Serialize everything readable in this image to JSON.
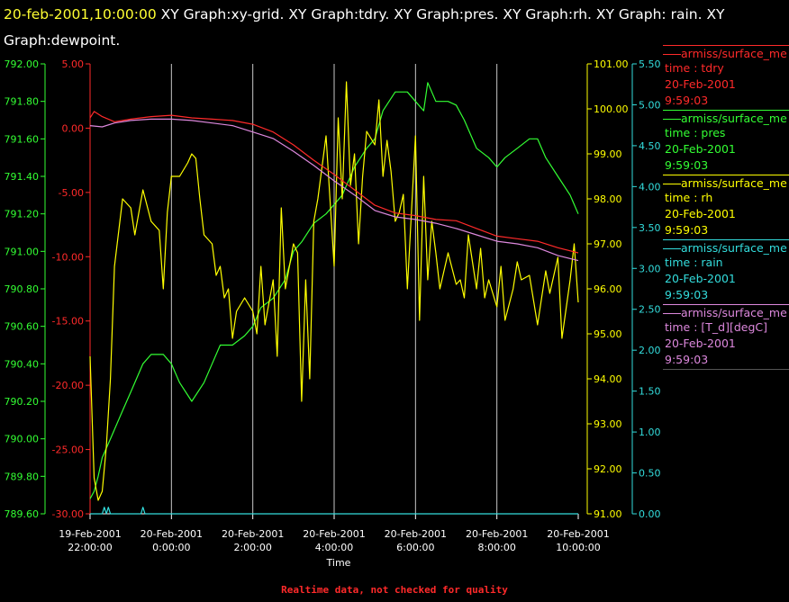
{
  "header": {
    "timestamp": "20-feb-2001,10:00:00",
    "text": " XY Graph:xy-grid.  XY Graph:tdry.  XY Graph:pres.  XY Graph:rh.  XY Graph: rain.  XY Graph:dewpoint."
  },
  "footer": {
    "note": "Realtime data, not checked for quality"
  },
  "colors": {
    "tdry": "#ff2a2a",
    "pres": "#33ff33",
    "rh": "#ffff00",
    "rain": "#33dddd",
    "dewpoint": "#dd88dd",
    "grid": "#c8c8c8"
  },
  "legend": [
    {
      "source": "armiss/surface_me",
      "label": "time : tdry",
      "date": "20-Feb-2001",
      "time": "9:59:03"
    },
    {
      "source": "armiss/surface_me",
      "label": "time : pres",
      "date": "20-Feb-2001",
      "time": "9:59:03"
    },
    {
      "source": "armiss/surface_me",
      "label": "time : rh",
      "date": "20-Feb-2001",
      "time": "9:59:03"
    },
    {
      "source": "armiss/surface_me",
      "label": "time : rain",
      "date": "20-Feb-2001",
      "time": "9:59:03"
    },
    {
      "source": "armiss/surface_me",
      "label": "time : [T_d][degC]",
      "date": "20-Feb-2001",
      "time": "9:59:03"
    }
  ],
  "chart_data": {
    "type": "line",
    "xlabel": "Time",
    "x_ticks": [
      {
        "line1": "19-Feb-2001",
        "line2": "22:00:00",
        "hours": 0
      },
      {
        "line1": "20-Feb-2001",
        "line2": "0:00:00",
        "hours": 2
      },
      {
        "line1": "20-Feb-2001",
        "line2": "2:00:00",
        "hours": 4
      },
      {
        "line1": "20-Feb-2001",
        "line2": "4:00:00",
        "hours": 6
      },
      {
        "line1": "20-Feb-2001",
        "line2": "6:00:00",
        "hours": 8
      },
      {
        "line1": "20-Feb-2001",
        "line2": "8:00:00",
        "hours": 10
      },
      {
        "line1": "20-Feb-2001",
        "line2": "10:00:00",
        "hours": 12
      }
    ],
    "x_hour_range": [
      0,
      12
    ],
    "grid": true,
    "axes": {
      "pres": {
        "range": [
          789.6,
          792.0
        ],
        "ticks": [
          "789.60",
          "789.80",
          "790.00",
          "790.20",
          "790.40",
          "790.60",
          "790.80",
          "791.00",
          "791.20",
          "791.40",
          "791.60",
          "791.80",
          "792.00"
        ]
      },
      "temp": {
        "range": [
          -30,
          5
        ],
        "ticks": [
          "-30.00",
          "-25.00",
          "-20.00",
          "-15.00",
          "-10.00",
          "-5.00",
          "0.00",
          "5.00"
        ]
      },
      "rh": {
        "range": [
          91,
          101
        ],
        "ticks": [
          "91.00",
          "92.00",
          "93.00",
          "94.00",
          "95.00",
          "96.00",
          "97.00",
          "98.00",
          "99.00",
          "100.00",
          "101.00"
        ]
      },
      "rain": {
        "range": [
          0,
          5.5
        ],
        "ticks": [
          "0.00",
          "0.50",
          "1.00",
          "1.50",
          "2.00",
          "2.50",
          "3.00",
          "3.50",
          "4.00",
          "4.50",
          "5.00",
          "5.50"
        ]
      }
    },
    "series": [
      {
        "key": "tdry",
        "axis": "temp",
        "x": [
          0,
          0.1,
          0.3,
          0.6,
          1,
          1.5,
          2,
          2.5,
          3,
          3.5,
          4,
          4.5,
          5,
          5.5,
          6,
          6.5,
          7,
          7.5,
          8,
          8.5,
          9,
          9.5,
          10,
          10.5,
          11,
          11.5,
          12
        ],
        "y": [
          0.8,
          1.3,
          0.9,
          0.5,
          0.7,
          0.9,
          1.0,
          0.8,
          0.7,
          0.6,
          0.3,
          -0.3,
          -1.3,
          -2.5,
          -3.6,
          -4.8,
          -6.0,
          -6.6,
          -6.8,
          -7.1,
          -7.2,
          -7.8,
          -8.4,
          -8.6,
          -8.8,
          -9.3,
          -9.7
        ]
      },
      {
        "key": "dewpoint",
        "axis": "temp",
        "x": [
          0,
          0.3,
          0.6,
          1,
          1.5,
          2,
          2.5,
          3,
          3.5,
          4,
          4.5,
          5,
          5.5,
          6,
          6.5,
          7,
          7.5,
          8,
          8.5,
          9,
          9.5,
          10,
          10.5,
          11,
          11.5,
          12
        ],
        "y": [
          0.2,
          0.1,
          0.4,
          0.6,
          0.7,
          0.7,
          0.6,
          0.4,
          0.2,
          -0.3,
          -0.8,
          -1.8,
          -2.9,
          -4.1,
          -5.2,
          -6.4,
          -6.9,
          -7.1,
          -7.4,
          -7.8,
          -8.3,
          -8.8,
          -9.0,
          -9.3,
          -9.9,
          -10.3
        ]
      },
      {
        "key": "pres",
        "axis": "pres",
        "x": [
          0,
          0.1,
          0.2,
          0.3,
          0.5,
          0.8,
          1,
          1.3,
          1.5,
          1.8,
          2,
          2.2,
          2.5,
          2.8,
          3,
          3.2,
          3.5,
          3.8,
          4,
          4.2,
          4.5,
          4.8,
          5,
          5.2,
          5.5,
          5.8,
          6,
          6.2,
          6.5,
          6.8,
          7,
          7.2,
          7.5,
          7.8,
          8,
          8.2,
          8.3,
          8.5,
          8.8,
          9,
          9.2,
          9.5,
          9.8,
          10,
          10.2,
          10.5,
          10.8,
          11,
          11.2,
          11.5,
          11.8,
          12
        ],
        "y": [
          789.68,
          789.72,
          789.8,
          789.9,
          790.0,
          790.15,
          790.25,
          790.4,
          790.45,
          790.45,
          790.4,
          790.3,
          790.2,
          790.3,
          790.4,
          790.5,
          790.5,
          790.55,
          790.6,
          790.7,
          790.75,
          790.85,
          791.0,
          791.05,
          791.15,
          791.2,
          791.25,
          791.3,
          791.45,
          791.55,
          791.6,
          791.75,
          791.85,
          791.85,
          791.8,
          791.75,
          791.9,
          791.8,
          791.8,
          791.78,
          791.7,
          791.55,
          791.5,
          791.45,
          791.5,
          791.55,
          791.6,
          791.6,
          791.5,
          791.4,
          791.3,
          791.2
        ]
      },
      {
        "key": "rh",
        "axis": "rh",
        "x": [
          0,
          0.1,
          0.2,
          0.3,
          0.4,
          0.5,
          0.6,
          0.8,
          1,
          1.1,
          1.3,
          1.5,
          1.7,
          1.8,
          1.9,
          2,
          2.2,
          2.4,
          2.5,
          2.6,
          2.7,
          2.8,
          3,
          3.1,
          3.2,
          3.3,
          3.4,
          3.5,
          3.6,
          3.8,
          4,
          4.1,
          4.2,
          4.3,
          4.5,
          4.6,
          4.7,
          4.8,
          5,
          5.1,
          5.2,
          5.3,
          5.4,
          5.5,
          5.6,
          5.8,
          6,
          6.1,
          6.2,
          6.3,
          6.4,
          6.5,
          6.6,
          6.7,
          6.8,
          7,
          7.1,
          7.2,
          7.3,
          7.4,
          7.5,
          7.6,
          7.7,
          7.8,
          8,
          8.1,
          8.2,
          8.3,
          8.4,
          8.5,
          8.6,
          8.8,
          9,
          9.1,
          9.2,
          9.3,
          9.5,
          9.6,
          9.7,
          9.8,
          10,
          10.1,
          10.2,
          10.4,
          10.5,
          10.6,
          10.8,
          11,
          11.2,
          11.3,
          11.5,
          11.6,
          11.8,
          11.9,
          12
        ],
        "y": [
          94.5,
          91.8,
          91.3,
          91.5,
          92.5,
          94.0,
          96.5,
          98.0,
          97.8,
          97.2,
          98.2,
          97.5,
          97.3,
          96.0,
          97.7,
          98.5,
          98.5,
          98.8,
          99.0,
          98.9,
          98.0,
          97.2,
          97.0,
          96.3,
          96.5,
          95.8,
          96.0,
          94.9,
          95.5,
          95.8,
          95.5,
          95.0,
          96.5,
          95.2,
          96.2,
          94.5,
          97.8,
          96.0,
          97.0,
          96.8,
          93.5,
          96.2,
          94.0,
          97.5,
          98.0,
          99.4,
          96.5,
          99.8,
          98.0,
          100.6,
          98.3,
          99.0,
          97.0,
          98.5,
          99.5,
          99.2,
          100.2,
          98.5,
          99.3,
          98.6,
          97.5,
          97.7,
          98.1,
          96.0,
          99.4,
          95.3,
          98.5,
          96.2,
          97.5,
          96.8,
          96.0,
          96.8,
          96.1,
          96.2,
          95.8,
          97.2,
          96.0,
          96.9,
          95.8,
          96.2,
          95.6,
          96.5,
          95.3,
          96.0,
          96.6,
          96.2,
          96.3,
          95.2,
          96.4,
          95.9,
          96.7,
          94.9,
          96.2,
          97.0,
          95.7
        ]
      },
      {
        "key": "rain",
        "axis": "rain",
        "x": [
          0,
          0.3,
          0.35,
          0.4,
          0.45,
          0.5,
          0.55,
          0.6,
          0.65,
          0.7,
          0.75,
          1.2,
          1.25,
          1.3,
          1.35,
          12
        ],
        "y": [
          0,
          0,
          0.08,
          0,
          0.08,
          0,
          0,
          0,
          0,
          0,
          0,
          0,
          0,
          0.08,
          0,
          0
        ]
      }
    ]
  }
}
